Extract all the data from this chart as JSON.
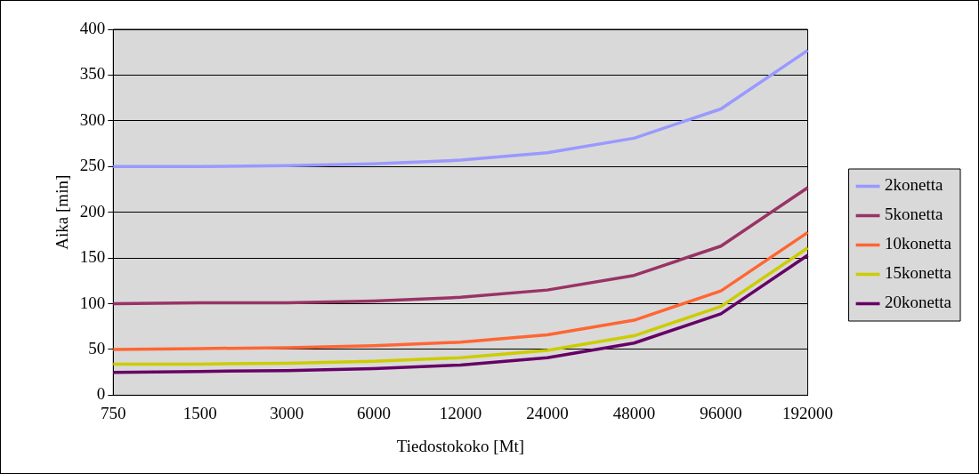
{
  "chart_data": {
    "type": "line",
    "xlabel": "Tiedostokoko [Mt]",
    "ylabel": "Aika [min]",
    "categories": [
      "750",
      "1500",
      "3000",
      "6000",
      "12000",
      "24000",
      "48000",
      "96000",
      "192000"
    ],
    "series": [
      {
        "name": "2konetta",
        "color": "#9999ff",
        "values": [
          250,
          250,
          251,
          253,
          257,
          265,
          281,
          313,
          377
        ]
      },
      {
        "name": "5konetta",
        "color": "#993366",
        "values": [
          100,
          101,
          101,
          103,
          107,
          115,
          131,
          163,
          227
        ]
      },
      {
        "name": "10konetta",
        "color": "#ff6633",
        "values": [
          50,
          51,
          52,
          54,
          58,
          66,
          82,
          114,
          178
        ]
      },
      {
        "name": "15konetta",
        "color": "#cccc00",
        "values": [
          34,
          34,
          35,
          37,
          41,
          49,
          65,
          97,
          161
        ]
      },
      {
        "name": "20konetta",
        "color": "#660066",
        "values": [
          25,
          26,
          27,
          29,
          33,
          41,
          57,
          89,
          153
        ]
      }
    ],
    "ylim": [
      0,
      400
    ],
    "yticks": [
      0,
      50,
      100,
      150,
      200,
      250,
      300,
      350,
      400
    ],
    "grid": "y",
    "legend": "right",
    "marker": "none",
    "line_style": "solid"
  }
}
